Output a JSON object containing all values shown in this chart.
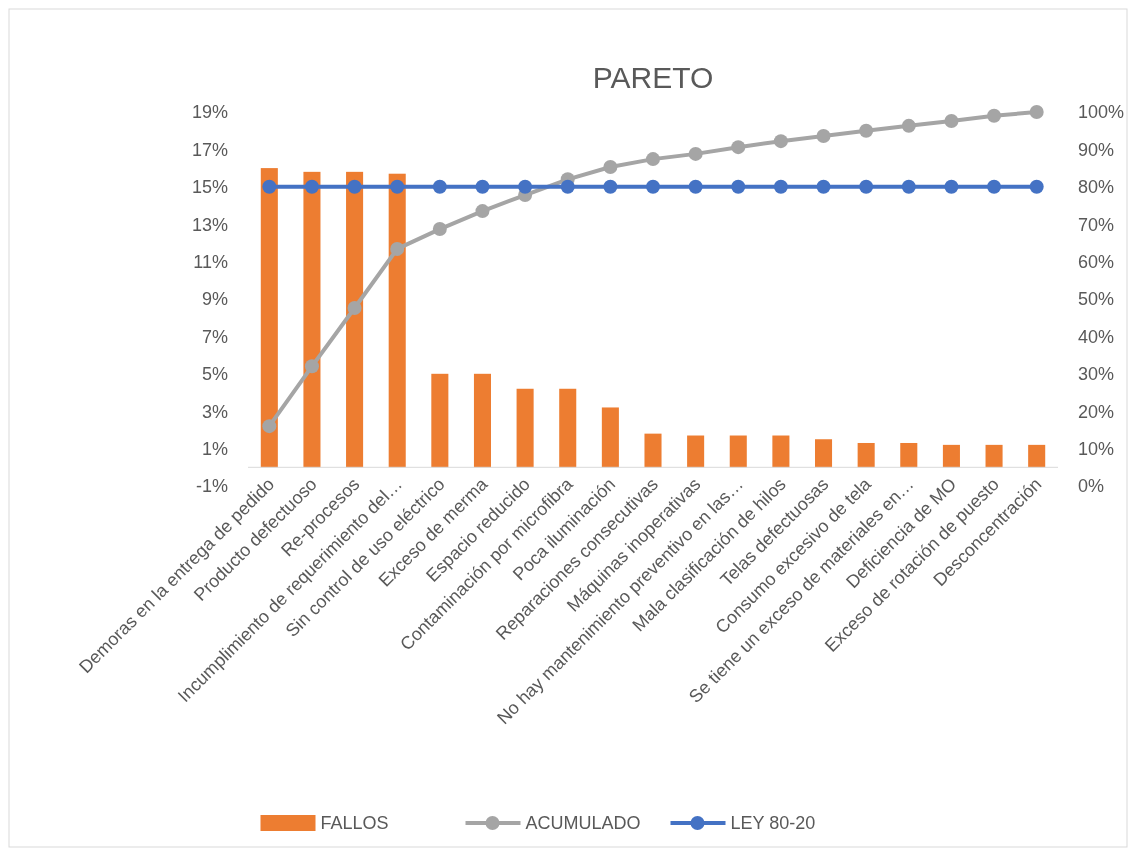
{
  "chart_data": {
    "type": "bar",
    "title": "PARETO",
    "categories": [
      "Demoras en la entrega de pedido",
      "Producto defectuoso",
      "Re-procesos",
      "Incumplimiento de requerimiento del…",
      "Sin control de uso eléctrico",
      "Exceso de merma",
      "Espacio reducido",
      "Contaminación por microfibra",
      "Poca iluminación",
      "Reparaciones consecutivas",
      "Máquinas inoperativas",
      "No hay mantenimiento preventivo en las…",
      "Mala clasificación de hilos",
      "Telas defectuosas",
      "Consumo excesivo de tela",
      "Se tiene un exceso de materiales en…",
      "Deficiencia de MO",
      "Exceso de rotación de puesto",
      "Desconcentración"
    ],
    "series": [
      {
        "name": "FALLOS",
        "color": "#ed7d31",
        "values": [
          16.0,
          15.8,
          15.8,
          15.7,
          5.0,
          5.0,
          4.2,
          4.2,
          3.2,
          1.8,
          1.7,
          1.7,
          1.7,
          1.5,
          1.3,
          1.3,
          1.2,
          1.2,
          1.2
        ]
      },
      {
        "name": "ACUMULADO",
        "type": "line",
        "axis": "y2",
        "color": "#a5a5a5",
        "values": [
          16,
          32,
          47.6,
          63.4,
          68.7,
          73.5,
          77.8,
          82,
          85.3,
          87.4,
          88.8,
          90.6,
          92.2,
          93.6,
          95,
          96.3,
          97.6,
          99,
          100
        ]
      },
      {
        "name": "LEY 80-20",
        "type": "line",
        "axis": "y2",
        "color": "#4472c4",
        "values": [
          80,
          80,
          80,
          80,
          80,
          80,
          80,
          80,
          80,
          80,
          80,
          80,
          80,
          80,
          80,
          80,
          80,
          80,
          80
        ]
      }
    ],
    "ylim": [
      -1,
      19
    ],
    "yticks": [
      {
        "value": -1,
        "label": "-1%"
      },
      {
        "value": 1,
        "label": "1%"
      },
      {
        "value": 3,
        "label": "3%"
      },
      {
        "value": 5,
        "label": "5%"
      },
      {
        "value": 7,
        "label": "7%"
      },
      {
        "value": 9,
        "label": "9%"
      },
      {
        "value": 11,
        "label": "11%"
      },
      {
        "value": 13,
        "label": "13%"
      },
      {
        "value": 15,
        "label": "15%"
      },
      {
        "value": 17,
        "label": "17%"
      },
      {
        "value": 19,
        "label": "19%"
      }
    ],
    "y2lim": [
      0,
      100
    ],
    "y2ticks": [
      {
        "value": 0,
        "label": "0%"
      },
      {
        "value": 10,
        "label": "10%"
      },
      {
        "value": 20,
        "label": "20%"
      },
      {
        "value": 30,
        "label": "30%"
      },
      {
        "value": 40,
        "label": "40%"
      },
      {
        "value": 50,
        "label": "50%"
      },
      {
        "value": 60,
        "label": "60%"
      },
      {
        "value": 70,
        "label": "70%"
      },
      {
        "value": 80,
        "label": "80%"
      },
      {
        "value": 90,
        "label": "90%"
      },
      {
        "value": 100,
        "label": "100%"
      }
    ],
    "marker": "circle",
    "legend": "bottom",
    "grid": false
  }
}
